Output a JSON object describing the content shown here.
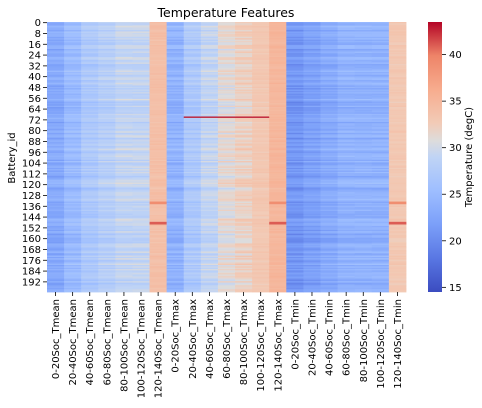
{
  "chart_data": {
    "type": "heatmap",
    "title": "Temperature Features",
    "xlabel": "",
    "ylabel": "Battery_id",
    "columns": [
      "0-20Soc_Tmean",
      "20-40Soc_Tmean",
      "40-60Soc_Tmean",
      "60-80Soc_Tmean",
      "80-100Soc_Tmean",
      "100-120Soc_Tmean",
      "120-140Soc_Tmean",
      "0-20Soc_Tmax",
      "20-40Soc_Tmax",
      "40-60Soc_Tmax",
      "60-80Soc_Tmax",
      "80-100Soc_Tmax",
      "100-120Soc_Tmax",
      "120-140Soc_Tmax",
      "0-20Soc_Tmin",
      "20-40Soc_Tmin",
      "40-60Soc_Tmin",
      "60-80Soc_Tmin",
      "80-100Soc_Tmin",
      "100-120Soc_Tmin",
      "120-140Soc_Tmin"
    ],
    "row_count": 200,
    "row_tick_labels": [
      "0",
      "8",
      "16",
      "24",
      "32",
      "40",
      "48",
      "56",
      "64",
      "72",
      "80",
      "88",
      "96",
      "104",
      "112",
      "120",
      "128",
      "136",
      "144",
      "152",
      "160",
      "168",
      "176",
      "184",
      "192"
    ],
    "column_typical_values": [
      23,
      25,
      27,
      28,
      29,
      29,
      34,
      24,
      27,
      29,
      31,
      32,
      33,
      35,
      21,
      22,
      23,
      24,
      24,
      24,
      33
    ],
    "colorbar": {
      "label": "Temperature (degC)",
      "range": [
        14.5,
        43.5
      ],
      "ticks": [
        "15",
        "20",
        "25",
        "30",
        "35",
        "40"
      ],
      "colormap": "coolwarm"
    },
    "notable_cells": [
      {
        "rows": [
          133,
          134
        ],
        "columns": [
          6,
          13,
          20
        ],
        "approx_value": 39
      },
      {
        "rows": [
          148,
          149
        ],
        "columns": [
          6,
          13,
          20
        ],
        "approx_value": 41
      },
      {
        "rows": [
          70,
          70
        ],
        "columns": [
          8,
          9,
          10,
          11,
          12
        ],
        "approx_value": 43
      }
    ],
    "legend_placement": "right colorbar",
    "grid": false
  }
}
